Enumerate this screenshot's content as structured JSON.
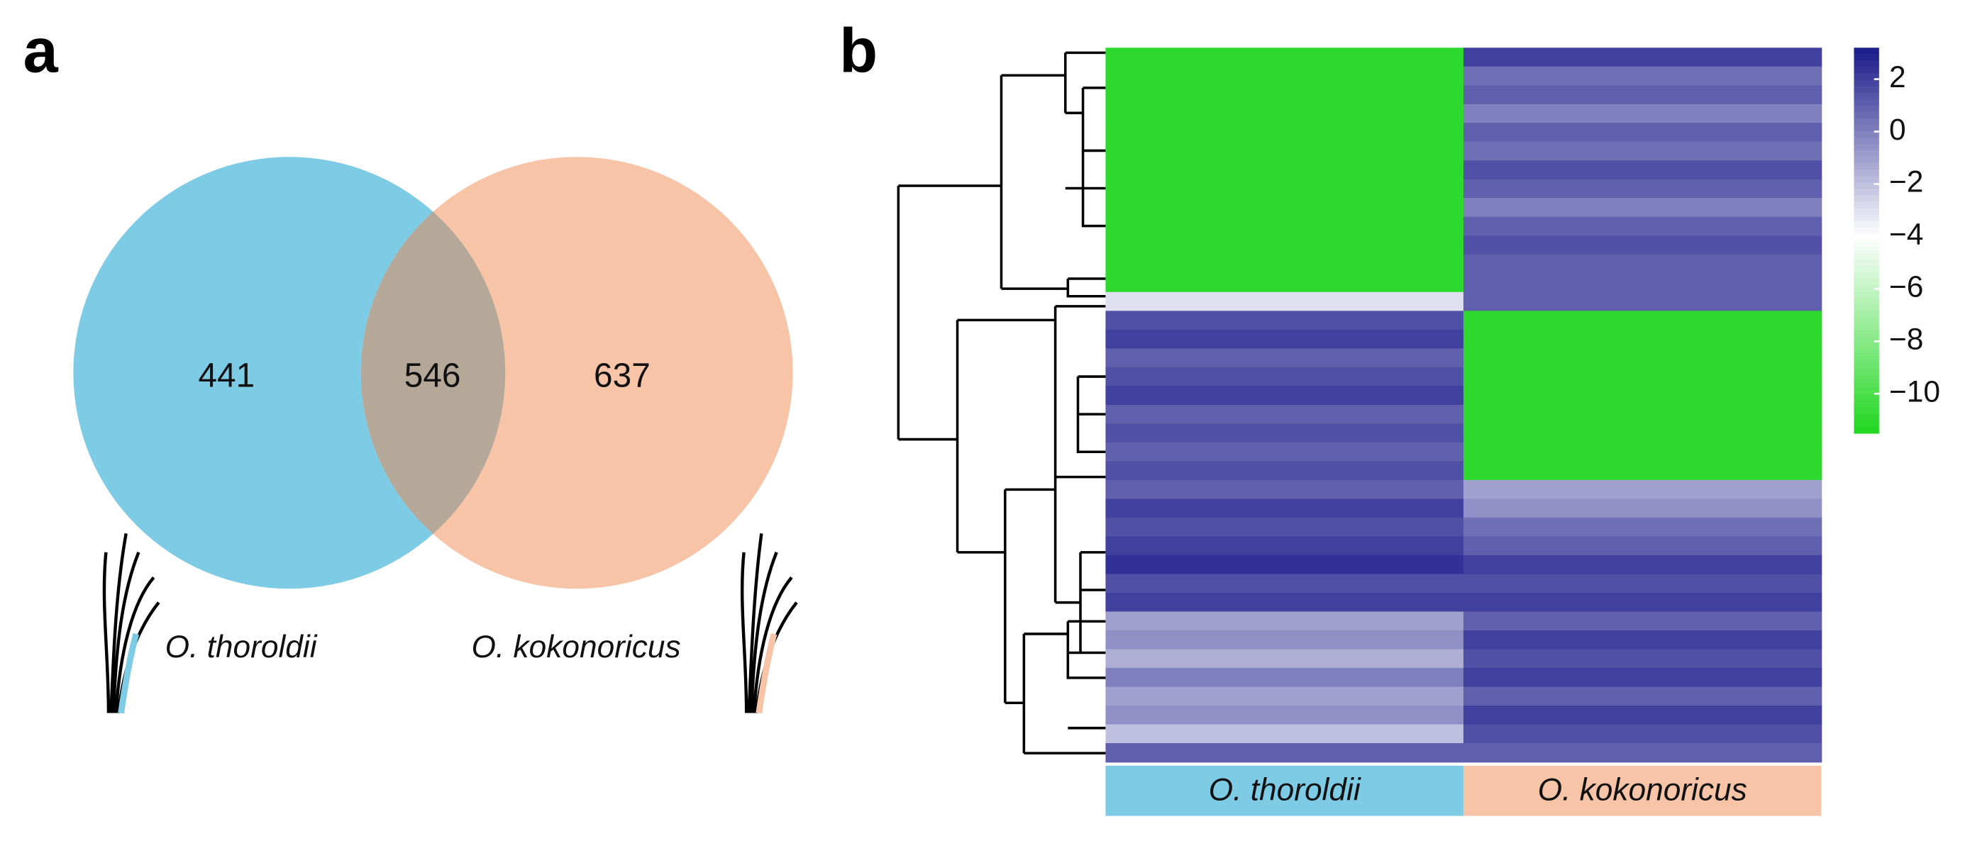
{
  "chart_data": [
    {
      "type": "venn",
      "label": "a",
      "sets": [
        "O. thoroldii",
        "O. kokonoricus"
      ],
      "values": [
        441,
        546,
        637
      ],
      "colors": [
        "#7ecbe6",
        "#f8c4a8",
        "#b6a898"
      ]
    },
    {
      "type": "heatmap",
      "label": "b",
      "columns": [
        "O. thoroldii",
        "O. kokonoricus"
      ],
      "column_colors": [
        "#7ecbe6",
        "#f8c4a8"
      ],
      "values": [
        [
          -11,
          -11,
          -11,
          -11,
          -11,
          -11,
          -11,
          -11,
          -11,
          -11,
          -11,
          -11,
          -11,
          -3,
          1.5,
          2,
          1,
          1.5,
          2,
          1,
          1.5,
          1,
          1.5,
          1,
          2,
          1.5,
          2,
          2.5,
          1.5,
          2,
          -1,
          -0.5,
          -1.5,
          0,
          -1,
          -0.5,
          -2,
          1
        ],
        [
          2,
          0.5,
          1,
          0,
          1,
          0.5,
          1.5,
          1,
          0,
          1,
          1.5,
          1,
          1,
          1,
          -11,
          -11,
          -11,
          -11,
          -11,
          -11,
          -11,
          -11,
          -11,
          -1,
          -0.5,
          0.5,
          1,
          2,
          1.5,
          2,
          1,
          2,
          1.5,
          2,
          1,
          2,
          1.5,
          1
        ]
      ],
      "zlim": [
        -11.5,
        3.2
      ],
      "zticks": [
        2,
        0,
        {
          "value": -2,
          "label": "−2"
        },
        {
          "value": -4,
          "label": "−4"
        },
        {
          "value": -6,
          "label": "−6"
        },
        {
          "value": -8,
          "label": "−8"
        },
        {
          "value": -10,
          "label": "−10"
        }
      ],
      "colors": [
        "#1fd61f",
        "#ffffff",
        "#1a1a8a"
      ]
    }
  ]
}
